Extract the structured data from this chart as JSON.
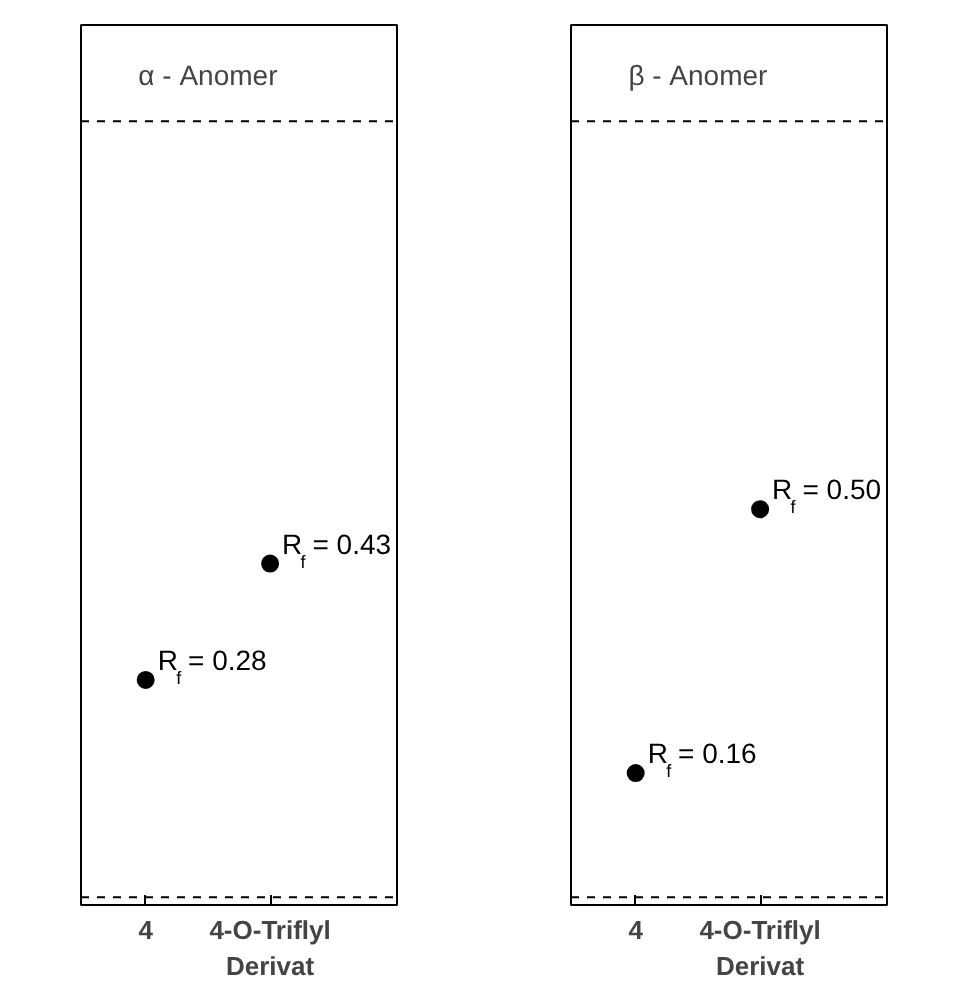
{
  "chart_data": [
    {
      "type": "scatter",
      "title": "α - Anomer",
      "categories": [
        "4",
        "4-O-Triflyl Derivat"
      ],
      "values": [
        0.28,
        0.43
      ],
      "color": "#000000",
      "marker": "circle",
      "value_labels": [
        "R$_{f}$ = 0.28",
        "R$_{f}$ = 0.43"
      ],
      "ylim": [
        -0.01,
        1.124
      ],
      "tick_labels": "x",
      "grid": false,
      "ref_lines": [
        {
          "axis": "y",
          "value": 0,
          "line_style": "dashed",
          "color": "#000000"
        },
        {
          "axis": "y",
          "value": 1,
          "line_style": "dashed",
          "color": "#000000"
        }
      ]
    },
    {
      "type": "scatter",
      "title": "β - Anomer",
      "categories": [
        "4",
        "4-O-Triflyl Derivat"
      ],
      "values": [
        0.16,
        0.5
      ],
      "color": "#000000",
      "marker": "circle",
      "value_labels": [
        "R$_{f}$ = 0.16",
        "R$_{f}$ = 0.50"
      ],
      "ylim": [
        -0.01,
        1.124
      ],
      "tick_labels": "x",
      "grid": false,
      "ref_lines": [
        {
          "axis": "y",
          "value": 0,
          "line_style": "dashed",
          "color": "#000000"
        },
        {
          "axis": "y",
          "value": 1,
          "line_style": "dashed",
          "color": "#000000"
        }
      ]
    }
  ]
}
